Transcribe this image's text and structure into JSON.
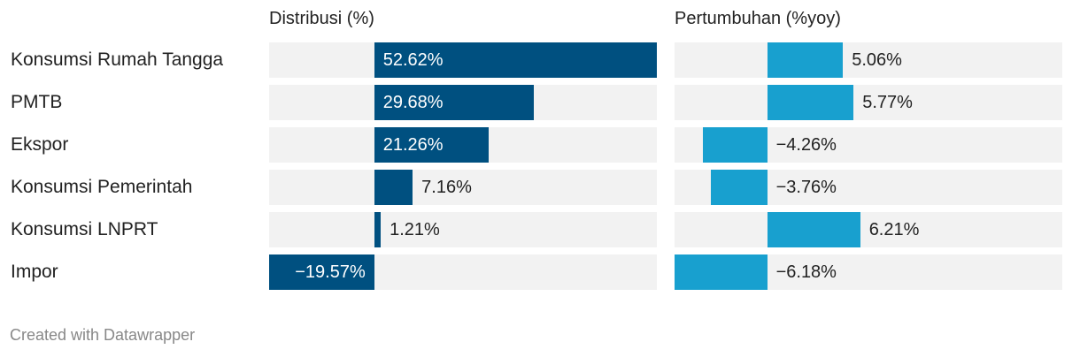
{
  "colors": {
    "dist_bar": "#005080",
    "growth_bar": "#18a0cf",
    "track": "#f2f2f2",
    "label_inside": "#ffffff",
    "label_outside": "#222222"
  },
  "chart_data": {
    "type": "bar",
    "orientation": "horizontal",
    "categories": [
      "Konsumsi Rumah Tangga",
      "PMTB",
      "Ekspor",
      "Konsumsi Pemerintah",
      "Konsumsi LNPRT",
      "Impor"
    ],
    "series": [
      {
        "name": "Distribusi (%)",
        "values": [
          52.62,
          29.68,
          21.26,
          7.16,
          1.21,
          -19.57
        ],
        "labels": [
          "52.62%",
          "29.68%",
          "21.26%",
          "7.16%",
          "1.21%",
          "−19.57%"
        ]
      },
      {
        "name": "Pertumbuhan (%yoy)",
        "values": [
          5.06,
          5.77,
          -4.26,
          -3.76,
          6.21,
          -6.18
        ],
        "labels": [
          "5.06%",
          "5.77%",
          "−4.26%",
          "−3.76%",
          "6.21%",
          "−6.18%"
        ]
      }
    ],
    "xlim": [
      [
        -19.57,
        52.62
      ],
      [
        -6.18,
        19.7
      ]
    ],
    "grid": false,
    "legend": "none"
  },
  "footer": {
    "credit": "Created with Datawrapper"
  }
}
